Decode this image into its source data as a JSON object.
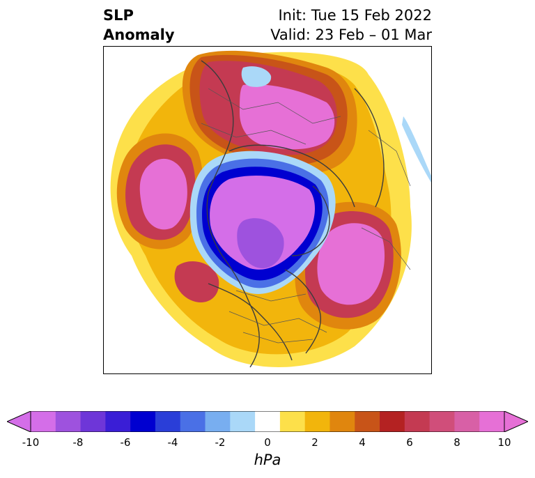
{
  "title": {
    "left_line1": "SLP",
    "left_line2": "Anomaly",
    "init": "Init: Tue 15 Feb 2022",
    "valid": "Valid: 23 Feb – 01 Mar"
  },
  "colorbar": {
    "unit": "hPa",
    "levels": [
      -10,
      -9,
      -8,
      -7,
      -6,
      -5,
      -4,
      -3,
      -2,
      -1,
      1,
      2,
      3,
      4,
      5,
      6,
      7,
      8,
      9,
      10
    ],
    "tick_labels": [
      "-10",
      "-8",
      "-6",
      "-4",
      "-2",
      "0",
      "2",
      "4",
      "6",
      "8",
      "10"
    ],
    "colors": [
      "#d46ee8",
      "#9e52de",
      "#6e36d8",
      "#3a1ed6",
      "#0000d0",
      "#2a3ed8",
      "#4a70e6",
      "#78aef0",
      "#aad8f8",
      "#ffffff",
      "#fde04a",
      "#f2b50c",
      "#e0860e",
      "#c85418",
      "#b42222",
      "#c43a52",
      "#d04e7a",
      "#d860a6",
      "#e670d6"
    ],
    "extend": "both"
  }
}
